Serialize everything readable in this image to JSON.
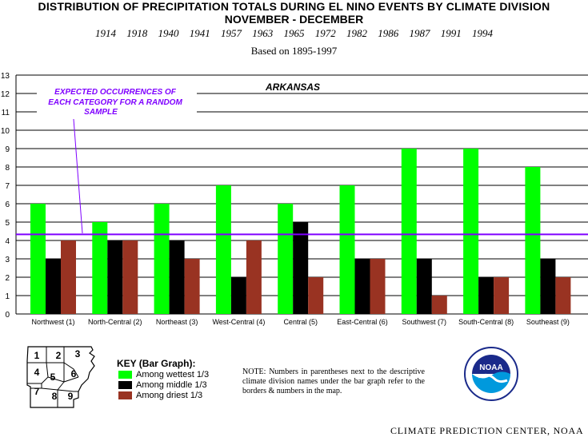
{
  "header": {
    "title_line1": "DISTRIBUTION OF PRECIPITATION TOTALS DURING EL NINO EVENTS BY CLIMATE DIVISION",
    "title_line2": "NOVEMBER - DECEMBER",
    "years": "1914 1918 1940 1941 1957 1963 1965 1972 1982 1986 1987 1991 1994",
    "based_on": "Based on 1895-1997"
  },
  "chart_data": {
    "type": "bar",
    "title": "ARKANSAS",
    "categories": [
      "Northwest (1)",
      "North-Central (2)",
      "Northeast (3)",
      "West-Central (4)",
      "Central (5)",
      "East-Central (6)",
      "Southwest (7)",
      "South-Central (8)",
      "Southeast (9)"
    ],
    "series": [
      {
        "name": "Among wettest 1/3",
        "color": "#00ff00",
        "values": [
          6,
          5,
          6,
          7,
          6,
          7,
          9,
          9,
          8
        ]
      },
      {
        "name": "Among middle 1/3",
        "color": "#000000",
        "values": [
          3,
          4,
          4,
          2,
          5,
          3,
          3,
          2,
          3
        ]
      },
      {
        "name": "Among driest 1/3",
        "color": "#993322",
        "values": [
          4,
          4,
          3,
          4,
          2,
          3,
          1,
          2,
          2
        ]
      }
    ],
    "ylim": [
      0,
      13
    ],
    "yticks": [
      0,
      1,
      2,
      3,
      4,
      5,
      6,
      7,
      8,
      9,
      10,
      11,
      12,
      13
    ],
    "grid": true,
    "expected_line": 4.33,
    "expected_color": "#7f00ff",
    "annotation": "EXPECTED OCCURRENCES OF EACH CATEGORY FOR A RANDOM SAMPLE"
  },
  "key": {
    "title": "KEY (Bar Graph):",
    "items": [
      "Among wettest 1/3",
      "Among middle 1/3",
      "Among driest 1/3"
    ],
    "colors": [
      "#00ff00",
      "#000000",
      "#993322"
    ]
  },
  "map": {
    "labels": [
      "1",
      "2",
      "3",
      "4",
      "5",
      "6",
      "7",
      "8",
      "9"
    ]
  },
  "note": "NOTE:  Numbers in parentheses next to the descriptive climate division names under the bar graph refer to the borders & numbers in the map.",
  "logo": {
    "text": "NOAA"
  },
  "credit": "CLIMATE PREDICTION CENTER, NOAA"
}
